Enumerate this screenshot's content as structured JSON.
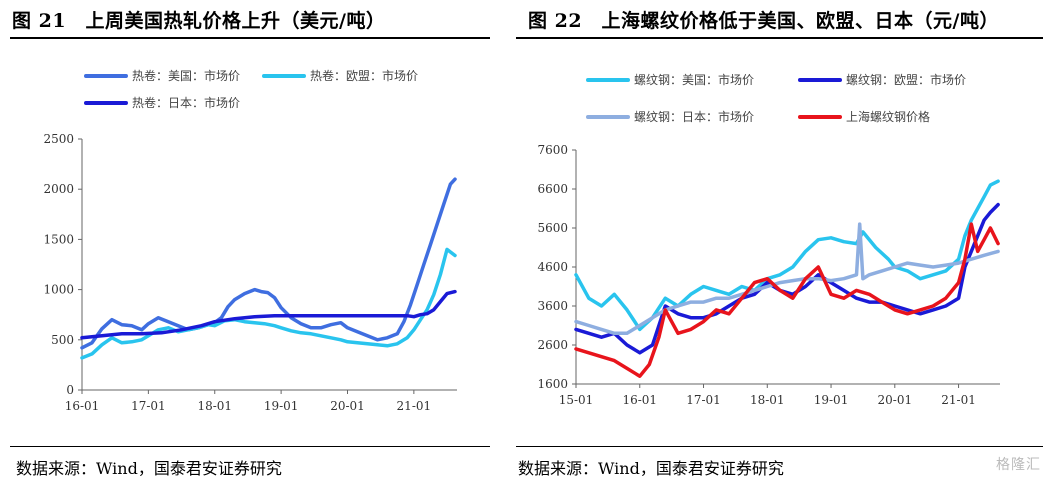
{
  "source_left": "数据来源：Wind，国泰君安证券研究",
  "source_right": "数据来源：Wind，国泰君安证券研究",
  "watermark": "格隆汇",
  "chart_data": [
    {
      "type": "line",
      "title": "图 21　上周美国热轧价格上升（美元/吨）",
      "xlabel": "",
      "ylabel": "",
      "x_ticks": [
        "16-01",
        "17-01",
        "18-01",
        "19-01",
        "20-01",
        "21-01"
      ],
      "y_ticks": [
        0,
        500,
        1000,
        1500,
        2000,
        2500
      ],
      "ylim": [
        0,
        2500
      ],
      "xlim": [
        2016.0,
        2021.65
      ],
      "legend_position": "top-left",
      "grid": false,
      "series": [
        {
          "name": "热卷：美国：市场价",
          "color": "#3f6ee0",
          "x": [
            2016.0,
            2016.15,
            2016.3,
            2016.45,
            2016.6,
            2016.75,
            2016.9,
            2017.0,
            2017.15,
            2017.3,
            2017.45,
            2017.6,
            2017.75,
            2017.9,
            2018.0,
            2018.1,
            2018.2,
            2018.3,
            2018.45,
            2018.6,
            2018.7,
            2018.8,
            2018.9,
            2019.0,
            2019.15,
            2019.3,
            2019.45,
            2019.6,
            2019.75,
            2019.9,
            2020.0,
            2020.15,
            2020.3,
            2020.45,
            2020.6,
            2020.75,
            2020.85,
            2020.95,
            2021.05,
            2021.15,
            2021.25,
            2021.35,
            2021.45,
            2021.55,
            2021.62
          ],
          "values": [
            420,
            470,
            610,
            700,
            650,
            640,
            600,
            660,
            720,
            680,
            640,
            600,
            620,
            650,
            670,
            720,
            830,
            900,
            960,
            1000,
            980,
            970,
            920,
            820,
            720,
            660,
            620,
            620,
            650,
            670,
            620,
            580,
            540,
            500,
            520,
            560,
            680,
            850,
            1050,
            1250,
            1450,
            1650,
            1850,
            2050,
            2100
          ]
        },
        {
          "name": "热卷：欧盟：市场价",
          "color": "#29c4ee",
          "x": [
            2016.0,
            2016.15,
            2016.3,
            2016.45,
            2016.6,
            2016.75,
            2016.9,
            2017.0,
            2017.15,
            2017.3,
            2017.45,
            2017.6,
            2017.75,
            2017.9,
            2018.0,
            2018.15,
            2018.3,
            2018.45,
            2018.6,
            2018.75,
            2018.9,
            2019.0,
            2019.15,
            2019.3,
            2019.45,
            2019.6,
            2019.75,
            2019.9,
            2020.0,
            2020.15,
            2020.3,
            2020.45,
            2020.6,
            2020.75,
            2020.9,
            2021.0,
            2021.1,
            2021.2,
            2021.3,
            2021.4,
            2021.5,
            2021.62
          ],
          "values": [
            320,
            360,
            450,
            520,
            470,
            480,
            500,
            540,
            600,
            620,
            580,
            600,
            620,
            650,
            640,
            690,
            700,
            680,
            670,
            660,
            640,
            620,
            590,
            570,
            560,
            540,
            520,
            500,
            480,
            470,
            460,
            450,
            440,
            460,
            520,
            600,
            700,
            800,
            950,
            1150,
            1400,
            1340
          ]
        },
        {
          "name": "热卷：日本：市场价",
          "color": "#1a1ad6",
          "x": [
            2016.0,
            2016.3,
            2016.6,
            2016.9,
            2017.2,
            2017.5,
            2017.8,
            2018.0,
            2018.3,
            2018.6,
            2018.9,
            2019.2,
            2019.5,
            2019.8,
            2020.1,
            2020.4,
            2020.7,
            2020.9,
            2021.0,
            2021.1,
            2021.2,
            2021.3,
            2021.4,
            2021.5,
            2021.62
          ],
          "values": [
            520,
            540,
            560,
            560,
            570,
            600,
            640,
            680,
            710,
            730,
            740,
            740,
            740,
            740,
            740,
            740,
            740,
            740,
            730,
            750,
            760,
            800,
            880,
            960,
            980
          ]
        }
      ]
    },
    {
      "type": "line",
      "title": "图 22　上海螺纹价格低于美国、欧盟、日本（元/吨）",
      "xlabel": "",
      "ylabel": "",
      "x_ticks": [
        "15-01",
        "16-01",
        "17-01",
        "18-01",
        "19-01",
        "20-01",
        "21-01"
      ],
      "y_ticks": [
        1600,
        2600,
        3600,
        4600,
        5600,
        6600,
        7600
      ],
      "ylim": [
        1600,
        7600
      ],
      "xlim": [
        2015.0,
        2021.65
      ],
      "legend_position": "top",
      "grid": false,
      "series": [
        {
          "name": "螺纹钢：美国：市场价",
          "color": "#29c4ee",
          "x": [
            2015.0,
            2015.2,
            2015.4,
            2015.6,
            2015.8,
            2016.0,
            2016.2,
            2016.4,
            2016.6,
            2016.8,
            2017.0,
            2017.2,
            2017.4,
            2017.6,
            2017.8,
            2018.0,
            2018.2,
            2018.4,
            2018.6,
            2018.8,
            2019.0,
            2019.2,
            2019.4,
            2019.5,
            2019.7,
            2019.9,
            2020.0,
            2020.2,
            2020.4,
            2020.6,
            2020.8,
            2021.0,
            2021.1,
            2021.2,
            2021.3,
            2021.4,
            2021.5,
            2021.62
          ],
          "values": [
            4400,
            3800,
            3600,
            3900,
            3500,
            3000,
            3300,
            3800,
            3600,
            3900,
            4100,
            4000,
            3900,
            4100,
            4000,
            4300,
            4400,
            4600,
            5000,
            5300,
            5350,
            5250,
            5200,
            5500,
            5100,
            4800,
            4600,
            4500,
            4300,
            4400,
            4500,
            4800,
            5400,
            5800,
            6100,
            6400,
            6700,
            6800
          ]
        },
        {
          "name": "螺纹钢：欧盟：市场价",
          "color": "#1a1ad6",
          "x": [
            2015.0,
            2015.2,
            2015.4,
            2015.6,
            2015.8,
            2016.0,
            2016.2,
            2016.4,
            2016.6,
            2016.8,
            2017.0,
            2017.2,
            2017.4,
            2017.6,
            2017.8,
            2018.0,
            2018.2,
            2018.4,
            2018.6,
            2018.8,
            2019.0,
            2019.2,
            2019.4,
            2019.6,
            2019.8,
            2020.0,
            2020.2,
            2020.4,
            2020.6,
            2020.8,
            2021.0,
            2021.1,
            2021.2,
            2021.3,
            2021.4,
            2021.5,
            2021.62
          ],
          "values": [
            3000,
            2900,
            2800,
            2900,
            2600,
            2400,
            2600,
            3600,
            3400,
            3300,
            3300,
            3400,
            3600,
            3800,
            3900,
            4200,
            4000,
            3900,
            4100,
            4400,
            4200,
            4000,
            3800,
            3700,
            3700,
            3600,
            3500,
            3400,
            3500,
            3600,
            3800,
            4600,
            5000,
            5400,
            5800,
            6000,
            6200
          ]
        },
        {
          "name": "螺纹钢：日本：市场价",
          "color": "#8eaee0",
          "x": [
            2015.0,
            2015.2,
            2015.4,
            2015.6,
            2015.8,
            2016.0,
            2016.2,
            2016.4,
            2016.6,
            2016.8,
            2017.0,
            2017.2,
            2017.4,
            2017.6,
            2017.8,
            2018.0,
            2018.2,
            2018.4,
            2018.6,
            2018.8,
            2019.0,
            2019.2,
            2019.4,
            2019.45,
            2019.5,
            2019.6,
            2019.8,
            2020.0,
            2020.2,
            2020.4,
            2020.6,
            2020.8,
            2021.0,
            2021.2,
            2021.4,
            2021.62
          ],
          "values": [
            3200,
            3100,
            3000,
            2900,
            2900,
            3100,
            3300,
            3500,
            3600,
            3700,
            3700,
            3800,
            3800,
            3900,
            4000,
            4100,
            4200,
            4250,
            4300,
            4300,
            4250,
            4300,
            4400,
            5700,
            4300,
            4400,
            4500,
            4600,
            4700,
            4650,
            4600,
            4650,
            4700,
            4800,
            4900,
            5000
          ]
        },
        {
          "name": "上海螺纹钢价格",
          "color": "#e8141c",
          "x": [
            2015.0,
            2015.2,
            2015.4,
            2015.6,
            2015.8,
            2016.0,
            2016.15,
            2016.3,
            2016.4,
            2016.6,
            2016.8,
            2017.0,
            2017.2,
            2017.4,
            2017.6,
            2017.8,
            2018.0,
            2018.2,
            2018.4,
            2018.6,
            2018.8,
            2019.0,
            2019.2,
            2019.4,
            2019.6,
            2019.8,
            2020.0,
            2020.2,
            2020.4,
            2020.6,
            2020.8,
            2021.0,
            2021.1,
            2021.2,
            2021.3,
            2021.4,
            2021.5,
            2021.62
          ],
          "values": [
            2500,
            2400,
            2300,
            2200,
            2000,
            1800,
            2100,
            2800,
            3500,
            2900,
            3000,
            3200,
            3500,
            3400,
            3800,
            4200,
            4300,
            4000,
            3800,
            4300,
            4600,
            3900,
            3800,
            4000,
            3900,
            3700,
            3500,
            3400,
            3500,
            3600,
            3800,
            4200,
            4800,
            5700,
            5000,
            5300,
            5600,
            5200
          ]
        }
      ]
    }
  ]
}
